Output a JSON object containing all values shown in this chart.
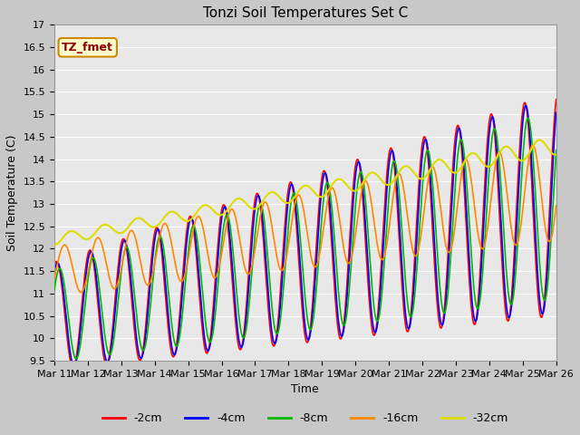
{
  "title": "Tonzi Soil Temperatures Set C",
  "xlabel": "Time",
  "ylabel": "Soil Temperature (C)",
  "ylim": [
    9.5,
    17.0
  ],
  "yticks": [
    9.5,
    10.0,
    10.5,
    11.0,
    11.5,
    12.0,
    12.5,
    13.0,
    13.5,
    14.0,
    14.5,
    15.0,
    15.5,
    16.0,
    16.5,
    17.0
  ],
  "x_start_day": 11,
  "x_end_day": 26,
  "xtick_days": [
    11,
    12,
    13,
    14,
    15,
    16,
    17,
    18,
    19,
    20,
    21,
    22,
    23,
    24,
    25,
    26
  ],
  "colors": {
    "-2cm": "#ff0000",
    "-4cm": "#0000ff",
    "-8cm": "#00bb00",
    "-16cm": "#ff8800",
    "-32cm": "#dddd00"
  },
  "legend_label": "TZ_fmet",
  "legend_bg": "#ffffcc",
  "legend_border": "#cc8800",
  "fig_bg": "#c8c8c8",
  "plot_bg": "#e8e8e8",
  "grid_color": "#ffffff",
  "title_fontsize": 11,
  "axis_fontsize": 9,
  "tick_fontsize": 8
}
